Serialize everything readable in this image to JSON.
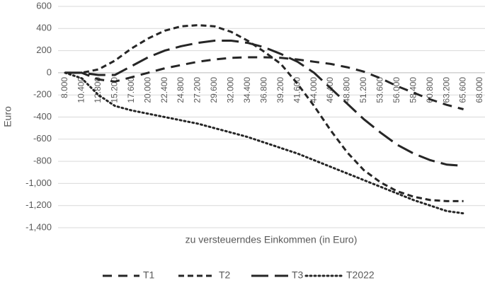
{
  "chart_data": {
    "type": "line",
    "y_label": "Euro",
    "x_label": "zu versteuerndes Einkommen (in Euro)",
    "categories": [
      "8.000",
      "10.400",
      "12.800",
      "15.200",
      "17.600",
      "20.000",
      "22.400",
      "24.800",
      "27.200",
      "29.600",
      "32.000",
      "34.400",
      "36.800",
      "39.200",
      "41.600",
      "44.000",
      "46.400",
      "48.800",
      "51.200",
      "53.600",
      "56.000",
      "58.400",
      "60.800",
      "63.200",
      "65.600",
      "68.000"
    ],
    "series": [
      {
        "name": "T1",
        "color": "#262626",
        "values": [
          0,
          0,
          -60,
          -80,
          -40,
          0,
          40,
          70,
          100,
          120,
          135,
          140,
          140,
          135,
          120,
          100,
          80,
          50,
          10,
          -50,
          -120,
          -180,
          -240,
          -290,
          -330,
          null
        ]
      },
      {
        "name": "T2",
        "color": "#262626",
        "values": [
          0,
          0,
          30,
          110,
          220,
          310,
          380,
          420,
          430,
          420,
          370,
          290,
          190,
          80,
          -100,
          -300,
          -520,
          -720,
          -880,
          -990,
          -1070,
          -1120,
          -1150,
          -1160,
          -1160,
          null
        ]
      },
      {
        "name": "T3",
        "color": "#262626",
        "values": [
          0,
          0,
          -20,
          -20,
          60,
          140,
          200,
          240,
          270,
          290,
          290,
          270,
          230,
          170,
          100,
          0,
          -140,
          -280,
          -420,
          -540,
          -650,
          -730,
          -790,
          -830,
          -840,
          null
        ]
      },
      {
        "name": "T2022",
        "color": "#262626",
        "values": [
          0,
          -50,
          -200,
          -300,
          -340,
          -370,
          -400,
          -430,
          -460,
          -500,
          -540,
          -580,
          -630,
          -680,
          -730,
          -790,
          -850,
          -910,
          -970,
          -1030,
          -1090,
          -1150,
          -1200,
          -1250,
          -1270,
          null
        ]
      }
    ],
    "ylim": [
      -1400,
      600
    ],
    "yticks": [
      600,
      400,
      200,
      0,
      -200,
      -400,
      -600,
      -800,
      {
        "value": -1000,
        "label": "-1,000"
      },
      {
        "value": -1200,
        "label": "-1,200"
      },
      {
        "value": -1400,
        "label": "-1,400"
      }
    ],
    "grid": true,
    "legend": "bottom"
  }
}
